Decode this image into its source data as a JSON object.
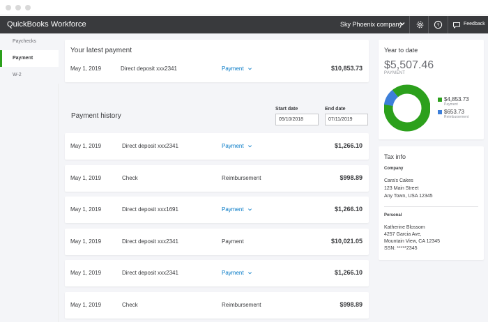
{
  "app": {
    "brand": "QuickBooks Workforce",
    "company": "Sky Phoenix company",
    "feedback_label": "Feedback",
    "icons": [
      "gear-icon",
      "help-icon",
      "feedback-icon"
    ]
  },
  "sidebar": {
    "items": [
      {
        "label": "Paychecks",
        "active": false
      },
      {
        "label": "Payment",
        "active": true
      },
      {
        "label": "W-2",
        "active": false
      }
    ]
  },
  "latest": {
    "title": "Your latest payment",
    "date": "May 1, 2019",
    "description": "Direct deposit xxx2341",
    "type": "Payment",
    "amount": "$10,853.73"
  },
  "history": {
    "title": "Payment history",
    "start_label": "Start date",
    "start_value": "05/10/2018",
    "end_label": "End date",
    "end_value": "07/11/2019",
    "rows": [
      {
        "date": "May 1, 2019",
        "description": "Direct deposit xxx2341",
        "type": "Payment",
        "link": true,
        "amount": "$1,266.10"
      },
      {
        "date": "May 1, 2019",
        "description": "Check",
        "type": "Reimbursement",
        "link": false,
        "amount": "$998.89"
      },
      {
        "date": "May 1, 2019",
        "description": "Direct deposit xxx1691",
        "type": "Payment",
        "link": true,
        "amount": "$1,266.10"
      },
      {
        "date": "May 1, 2019",
        "description": "Direct deposit xxx2341",
        "type": "Payment",
        "link": false,
        "amount": "$10,021.05"
      },
      {
        "date": "May 1, 2019",
        "description": "Direct deposit xxx2341",
        "type": "Payment",
        "link": true,
        "amount": "$1,266.10"
      },
      {
        "date": "May 1, 2019",
        "description": "Check",
        "type": "Reimbursement",
        "link": false,
        "amount": "$998.89"
      }
    ]
  },
  "ytd": {
    "title": "Year to date",
    "amount": "$5,507.46",
    "sub": "PAYMENT",
    "segments": [
      {
        "value": "$4,853.73",
        "label": "Payment",
        "amount": 4853.73,
        "color": "#2ca01c"
      },
      {
        "value": "$653.73",
        "label": "Reimbursement",
        "amount": 653.73,
        "color": "#3d7fd9"
      }
    ]
  },
  "tax": {
    "title": "Tax info",
    "company_head": "Company",
    "company_lines": [
      "Cara's Cakes",
      "123 Main Street",
      "Any Town, USA 12345"
    ],
    "personal_head": "Personal",
    "personal_lines": [
      "Katherine Blossom",
      "4257 Garcia Ave,",
      "Mountain View, CA 12345",
      "SSN: *****2345"
    ]
  }
}
